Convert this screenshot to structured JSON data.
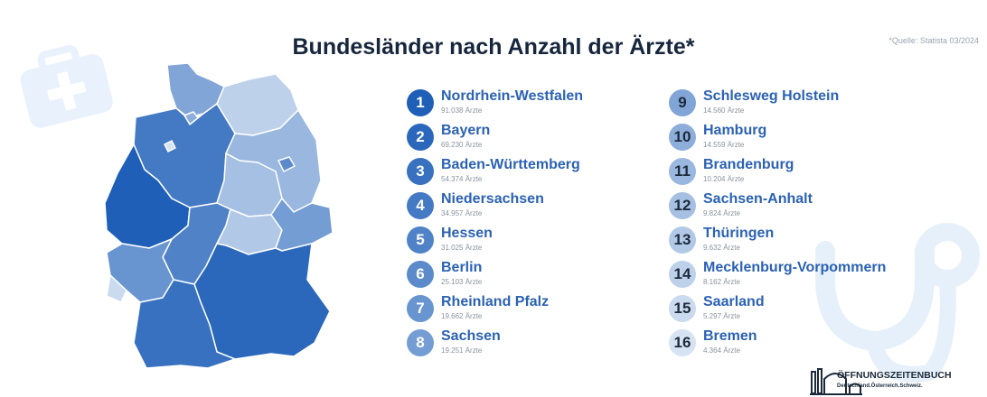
{
  "title": "Bundesländer nach Anzahl der Ärzte*",
  "source": "*Quelle: Statista 03/2024",
  "logo": {
    "name": "ÖFFNUNGSZEITENBUCH",
    "tagline": "Deutschland.Österreich.Schweiz."
  },
  "icons": {
    "background_left": "medical-kit-icon",
    "background_right": "stethoscope-icon"
  },
  "colors": {
    "title": "#16263d",
    "state_name": "#2b62b4",
    "value_text": "#8a939d",
    "rank_1": "#1f5fb8",
    "rank_16": "#d6e3f3"
  },
  "chart_data": {
    "type": "table",
    "title": "Bundesländer nach Anzahl der Ärzte*",
    "unit": "Ärzte",
    "rows": [
      {
        "rank": "1",
        "name": "Nordrhein-Westfalen",
        "value": 91038,
        "label": "91.038 Ärzte"
      },
      {
        "rank": "2",
        "name": "Bayern",
        "value": 69230,
        "label": "69.230 Ärzte"
      },
      {
        "rank": "3",
        "name": "Baden-Württemberg",
        "value": 54374,
        "label": "54.374 Ärzte"
      },
      {
        "rank": "4",
        "name": "Niedersachsen",
        "value": 34957,
        "label": "34.957 Ärzte"
      },
      {
        "rank": "5",
        "name": "Hessen",
        "value": 31025,
        "label": "31.025 Ärzte"
      },
      {
        "rank": "6",
        "name": "Berlin",
        "value": 25103,
        "label": "25.103 Ärzte"
      },
      {
        "rank": "7",
        "name": "Rheinland Pfalz",
        "value": 19662,
        "label": "19.662 Ärzte"
      },
      {
        "rank": "8",
        "name": "Sachsen",
        "value": 19251,
        "label": "19.251 Ärzte"
      },
      {
        "rank": "9",
        "name": "Schlesweg Holstein",
        "value": 14560,
        "label": "14.560 Ärzte"
      },
      {
        "rank": "10",
        "name": "Hamburg",
        "value": 14559,
        "label": "14.559 Ärzte"
      },
      {
        "rank": "11",
        "name": "Brandenburg",
        "value": 10204,
        "label": "10.204 Ärzte"
      },
      {
        "rank": "12",
        "name": "Sachsen-Anhalt",
        "value": 9824,
        "label": "9.824 Ärzte"
      },
      {
        "rank": "13",
        "name": "Thüringen",
        "value": 9632,
        "label": "9.632 Ärzte"
      },
      {
        "rank": "14",
        "name": "Mecklenburg-Vorpommern",
        "value": 8162,
        "label": "8.162 Ärzte"
      },
      {
        "rank": "15",
        "name": "Saarland",
        "value": 5297,
        "label": "5.297 Ärzte"
      },
      {
        "rank": "16",
        "name": "Bremen",
        "value": 4364,
        "label": "4.364 Ärzte"
      }
    ]
  }
}
